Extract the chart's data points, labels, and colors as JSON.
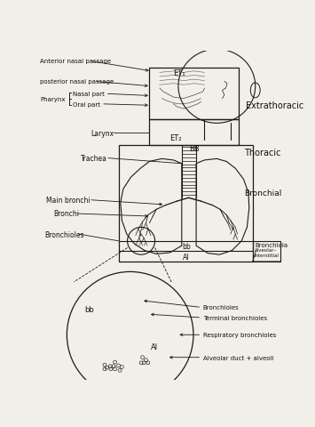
{
  "bg": "#f2efe9",
  "lc": "#1a1a1a",
  "tc": "#111111",
  "fs": 5.5,
  "fsm": 5.0,
  "labels": {
    "ant_nasal": "Anterior nasal passage",
    "post_nasal": "posterior nasal passage",
    "pharynx": "Pharynx",
    "nasal_part": "Nasal part",
    "oral_part": "Oral part",
    "larynx": "Larynx",
    "trachea": "Trachea",
    "main_bronchi": "Main bronchi",
    "bronchi": "Bronchi",
    "bronchioles_lft": "Bronchioles",
    "extrathoracic": "Extrathoracic",
    "thoracic": "Thoracic",
    "bronchial": "Bronchial",
    "bronchiola": "Bronchiola",
    "alv_int": "Alveolar–\ninterstitial",
    "ET1": "ET₁",
    "ET2": "ET₂",
    "BB": "BB",
    "bb": "bb",
    "AI": "Al",
    "bb2": "bb",
    "AI2": "Al",
    "bronchioles2": "Bronchioles",
    "terminal": "Terminal bronchioles",
    "respiratory": "Respiratory bronchioles",
    "alveolar_duct": "Alveolar duct + alveoli"
  }
}
